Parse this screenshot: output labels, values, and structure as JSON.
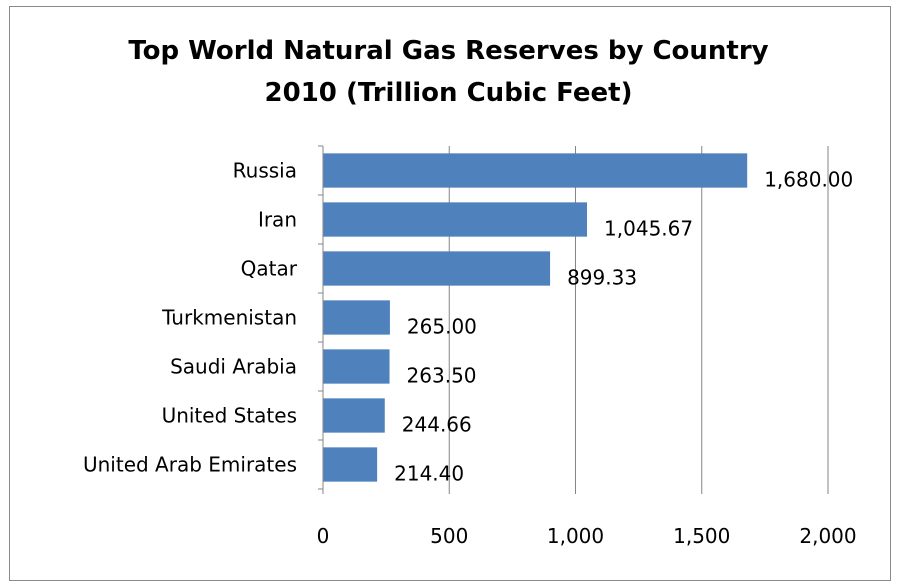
{
  "chart_data": {
    "type": "bar",
    "orientation": "horizontal",
    "title": [
      "Top World Natural Gas Reserves by Country",
      "2010 (Trillion Cubic Feet)"
    ],
    "categories": [
      "Russia",
      "Iran",
      "Qatar",
      "Turkmenistan",
      "Saudi Arabia",
      "United States",
      "United Arab Emirates"
    ],
    "values": [
      1680.0,
      1045.67,
      899.33,
      265.0,
      263.5,
      244.66,
      214.4
    ],
    "data_labels": [
      "1,680.00",
      "1,045.67",
      "899.33",
      "265.00",
      "263.50",
      "244.66",
      "214.40"
    ],
    "xlim": [
      0,
      2000
    ],
    "xticks": [
      0,
      500,
      1000,
      1500,
      2000
    ],
    "xtick_labels": [
      "0",
      "500",
      "1,000",
      "1,500",
      "2,000"
    ],
    "grid": true,
    "legend": "none",
    "bar_color": "#4f81bd",
    "grid_color": "#868686",
    "axis_color": "#868686"
  }
}
